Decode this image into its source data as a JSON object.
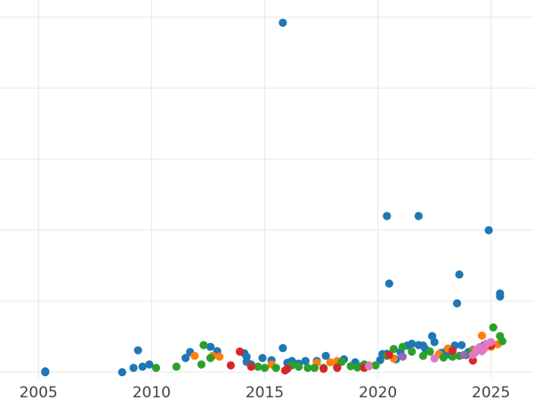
{
  "chart_data": {
    "type": "scatter",
    "title": "",
    "xlabel": "",
    "ylabel": "",
    "xlim": [
      2003.3,
      2026.9
    ],
    "ylim": [
      -15,
      840
    ],
    "x_ticks": [
      2005,
      2010,
      2015,
      2020,
      2025
    ],
    "x_tick_labels": [
      "2005",
      "2010",
      "2015",
      "2020",
      "2025"
    ],
    "y_gridlines": [
      0,
      165,
      330,
      495,
      660,
      825
    ],
    "y_tick_labels_visible": false,
    "legend": "none",
    "grid": true,
    "series": [
      {
        "color": "#1f77b4",
        "points": [
          [
            2005.3,
            0
          ],
          [
            2005.3,
            2
          ],
          [
            2008.7,
            0
          ],
          [
            2009.2,
            10
          ],
          [
            2009.4,
            51
          ],
          [
            2009.6,
            13
          ],
          [
            2009.9,
            18
          ],
          [
            2011.5,
            33
          ],
          [
            2011.7,
            47
          ],
          [
            2012.6,
            59
          ],
          [
            2012.9,
            49
          ],
          [
            2014.1,
            44
          ],
          [
            2014.2,
            36
          ],
          [
            2014.2,
            24
          ],
          [
            2014.4,
            18
          ],
          [
            2014.9,
            33
          ],
          [
            2015.3,
            28
          ],
          [
            2015.8,
            56
          ],
          [
            2015.8,
            812
          ],
          [
            2016.0,
            22
          ],
          [
            2016.2,
            26
          ],
          [
            2016.5,
            20
          ],
          [
            2016.8,
            26
          ],
          [
            2017.3,
            26
          ],
          [
            2017.7,
            38
          ],
          [
            2018.5,
            30
          ],
          [
            2019.0,
            23
          ],
          [
            2019.3,
            14
          ],
          [
            2020.1,
            28
          ],
          [
            2020.2,
            42
          ],
          [
            2020.4,
            43
          ],
          [
            2020.4,
            363
          ],
          [
            2020.5,
            206
          ],
          [
            2020.8,
            30
          ],
          [
            2021.0,
            47
          ],
          [
            2021.3,
            62
          ],
          [
            2021.5,
            66
          ],
          [
            2021.8,
            63
          ],
          [
            2021.8,
            363
          ],
          [
            2022.0,
            62
          ],
          [
            2022.1,
            54
          ],
          [
            2022.4,
            84
          ],
          [
            2022.5,
            70
          ],
          [
            2022.8,
            45
          ],
          [
            2023.0,
            48
          ],
          [
            2023.2,
            40
          ],
          [
            2023.4,
            62
          ],
          [
            2023.5,
            160
          ],
          [
            2023.6,
            227
          ],
          [
            2023.7,
            63
          ],
          [
            2023.9,
            40
          ],
          [
            2024.0,
            47
          ],
          [
            2024.2,
            52
          ],
          [
            2024.5,
            58
          ],
          [
            2024.7,
            63
          ],
          [
            2024.9,
            330
          ],
          [
            2025.0,
            62
          ],
          [
            2025.4,
            176
          ],
          [
            2025.4,
            183
          ]
        ]
      },
      {
        "color": "#ff7f0e",
        "points": [
          [
            2011.9,
            38
          ],
          [
            2012.7,
            38
          ],
          [
            2013.0,
            36
          ],
          [
            2015.3,
            18
          ],
          [
            2017.3,
            22
          ],
          [
            2017.9,
            23
          ],
          [
            2018.2,
            26
          ],
          [
            2019.6,
            16
          ],
          [
            2020.7,
            32
          ],
          [
            2022.7,
            42
          ],
          [
            2023.1,
            55
          ],
          [
            2024.2,
            50
          ],
          [
            2024.6,
            85
          ],
          [
            2025.0,
            59
          ],
          [
            2025.3,
            65
          ]
        ]
      },
      {
        "color": "#2ca02c",
        "points": [
          [
            2010.2,
            10
          ],
          [
            2011.1,
            13
          ],
          [
            2012.2,
            18
          ],
          [
            2012.3,
            63
          ],
          [
            2012.6,
            33
          ],
          [
            2014.7,
            13
          ],
          [
            2015.0,
            10
          ],
          [
            2015.5,
            10
          ],
          [
            2016.2,
            16
          ],
          [
            2016.5,
            13
          ],
          [
            2016.9,
            10
          ],
          [
            2017.2,
            10
          ],
          [
            2017.6,
            10
          ],
          [
            2018.2,
            12
          ],
          [
            2018.4,
            24
          ],
          [
            2018.8,
            14
          ],
          [
            2019.1,
            11
          ],
          [
            2019.4,
            18
          ],
          [
            2019.9,
            16
          ],
          [
            2020.4,
            38
          ],
          [
            2020.7,
            54
          ],
          [
            2021.1,
            59
          ],
          [
            2021.5,
            48
          ],
          [
            2022.0,
            38
          ],
          [
            2022.3,
            48
          ],
          [
            2022.9,
            34
          ],
          [
            2023.3,
            36
          ],
          [
            2023.6,
            38
          ],
          [
            2024.1,
            45
          ],
          [
            2024.6,
            54
          ],
          [
            2025.1,
            104
          ],
          [
            2025.4,
            84
          ],
          [
            2025.5,
            72
          ]
        ]
      },
      {
        "color": "#d62728",
        "points": [
          [
            2013.5,
            16
          ],
          [
            2013.9,
            48
          ],
          [
            2014.4,
            13
          ],
          [
            2015.9,
            4
          ],
          [
            2016.0,
            8
          ],
          [
            2017.6,
            8
          ],
          [
            2018.2,
            10
          ],
          [
            2019.4,
            10
          ],
          [
            2020.5,
            40
          ],
          [
            2023.3,
            50
          ],
          [
            2024.2,
            27
          ],
          [
            2025.0,
            62
          ]
        ]
      },
      {
        "color": "#9467bd",
        "points": [
          [
            2021.1,
            36
          ],
          [
            2023.8,
            40
          ],
          [
            2024.3,
            46
          ]
        ]
      },
      {
        "color": "#e377c2",
        "points": [
          [
            2019.6,
            14
          ],
          [
            2022.5,
            32
          ],
          [
            2024.2,
            40
          ],
          [
            2024.3,
            46
          ],
          [
            2024.4,
            52
          ],
          [
            2024.5,
            58
          ],
          [
            2024.6,
            49
          ],
          [
            2024.7,
            55
          ],
          [
            2024.8,
            66
          ],
          [
            2025.0,
            70
          ]
        ]
      }
    ]
  }
}
